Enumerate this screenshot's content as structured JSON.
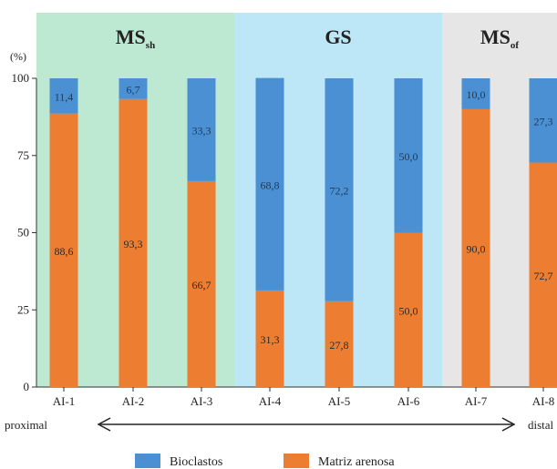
{
  "chart_data": {
    "type": "bar",
    "stacked": true,
    "categories": [
      "AI-1",
      "AI-2",
      "AI-3",
      "AI-4",
      "AI-5",
      "AI-6",
      "AI-7",
      "AI-8"
    ],
    "series": [
      {
        "name": "Matriz arenosa",
        "color": "#ED7D31",
        "values": [
          88.6,
          93.3,
          66.7,
          31.3,
          27.8,
          50.0,
          90.0,
          72.7
        ],
        "labels": [
          "88,6",
          "93,3",
          "66,7",
          "31,3",
          "27,8",
          "50,0",
          "90,0",
          "72,7"
        ]
      },
      {
        "name": "Bioclastos",
        "color": "#4A90D2",
        "values": [
          11.4,
          6.7,
          33.3,
          68.8,
          72.2,
          50.0,
          10.0,
          27.3
        ],
        "labels": [
          "11,4",
          "6,7",
          "33,3",
          "68,8",
          "72,2",
          "50,0",
          "10,0",
          "27,3"
        ]
      }
    ],
    "ylabel": "(%)",
    "ylim": [
      0,
      100
    ],
    "yticks": [
      "0",
      "25",
      "50",
      "75",
      "100"
    ],
    "legend_position": "bottom",
    "regions": [
      {
        "label": "MS",
        "sub": "sh",
        "from": 0,
        "to": 2,
        "color": "#BDE8D2"
      },
      {
        "label": "GS",
        "sub": "",
        "from": 3,
        "to": 5,
        "color": "#BDE6F6"
      },
      {
        "label": "MS",
        "sub": "of",
        "from": 6,
        "to": 7,
        "color": "#E6E6E6"
      }
    ],
    "axis_note": {
      "left": "proximal",
      "right": "distal"
    }
  }
}
